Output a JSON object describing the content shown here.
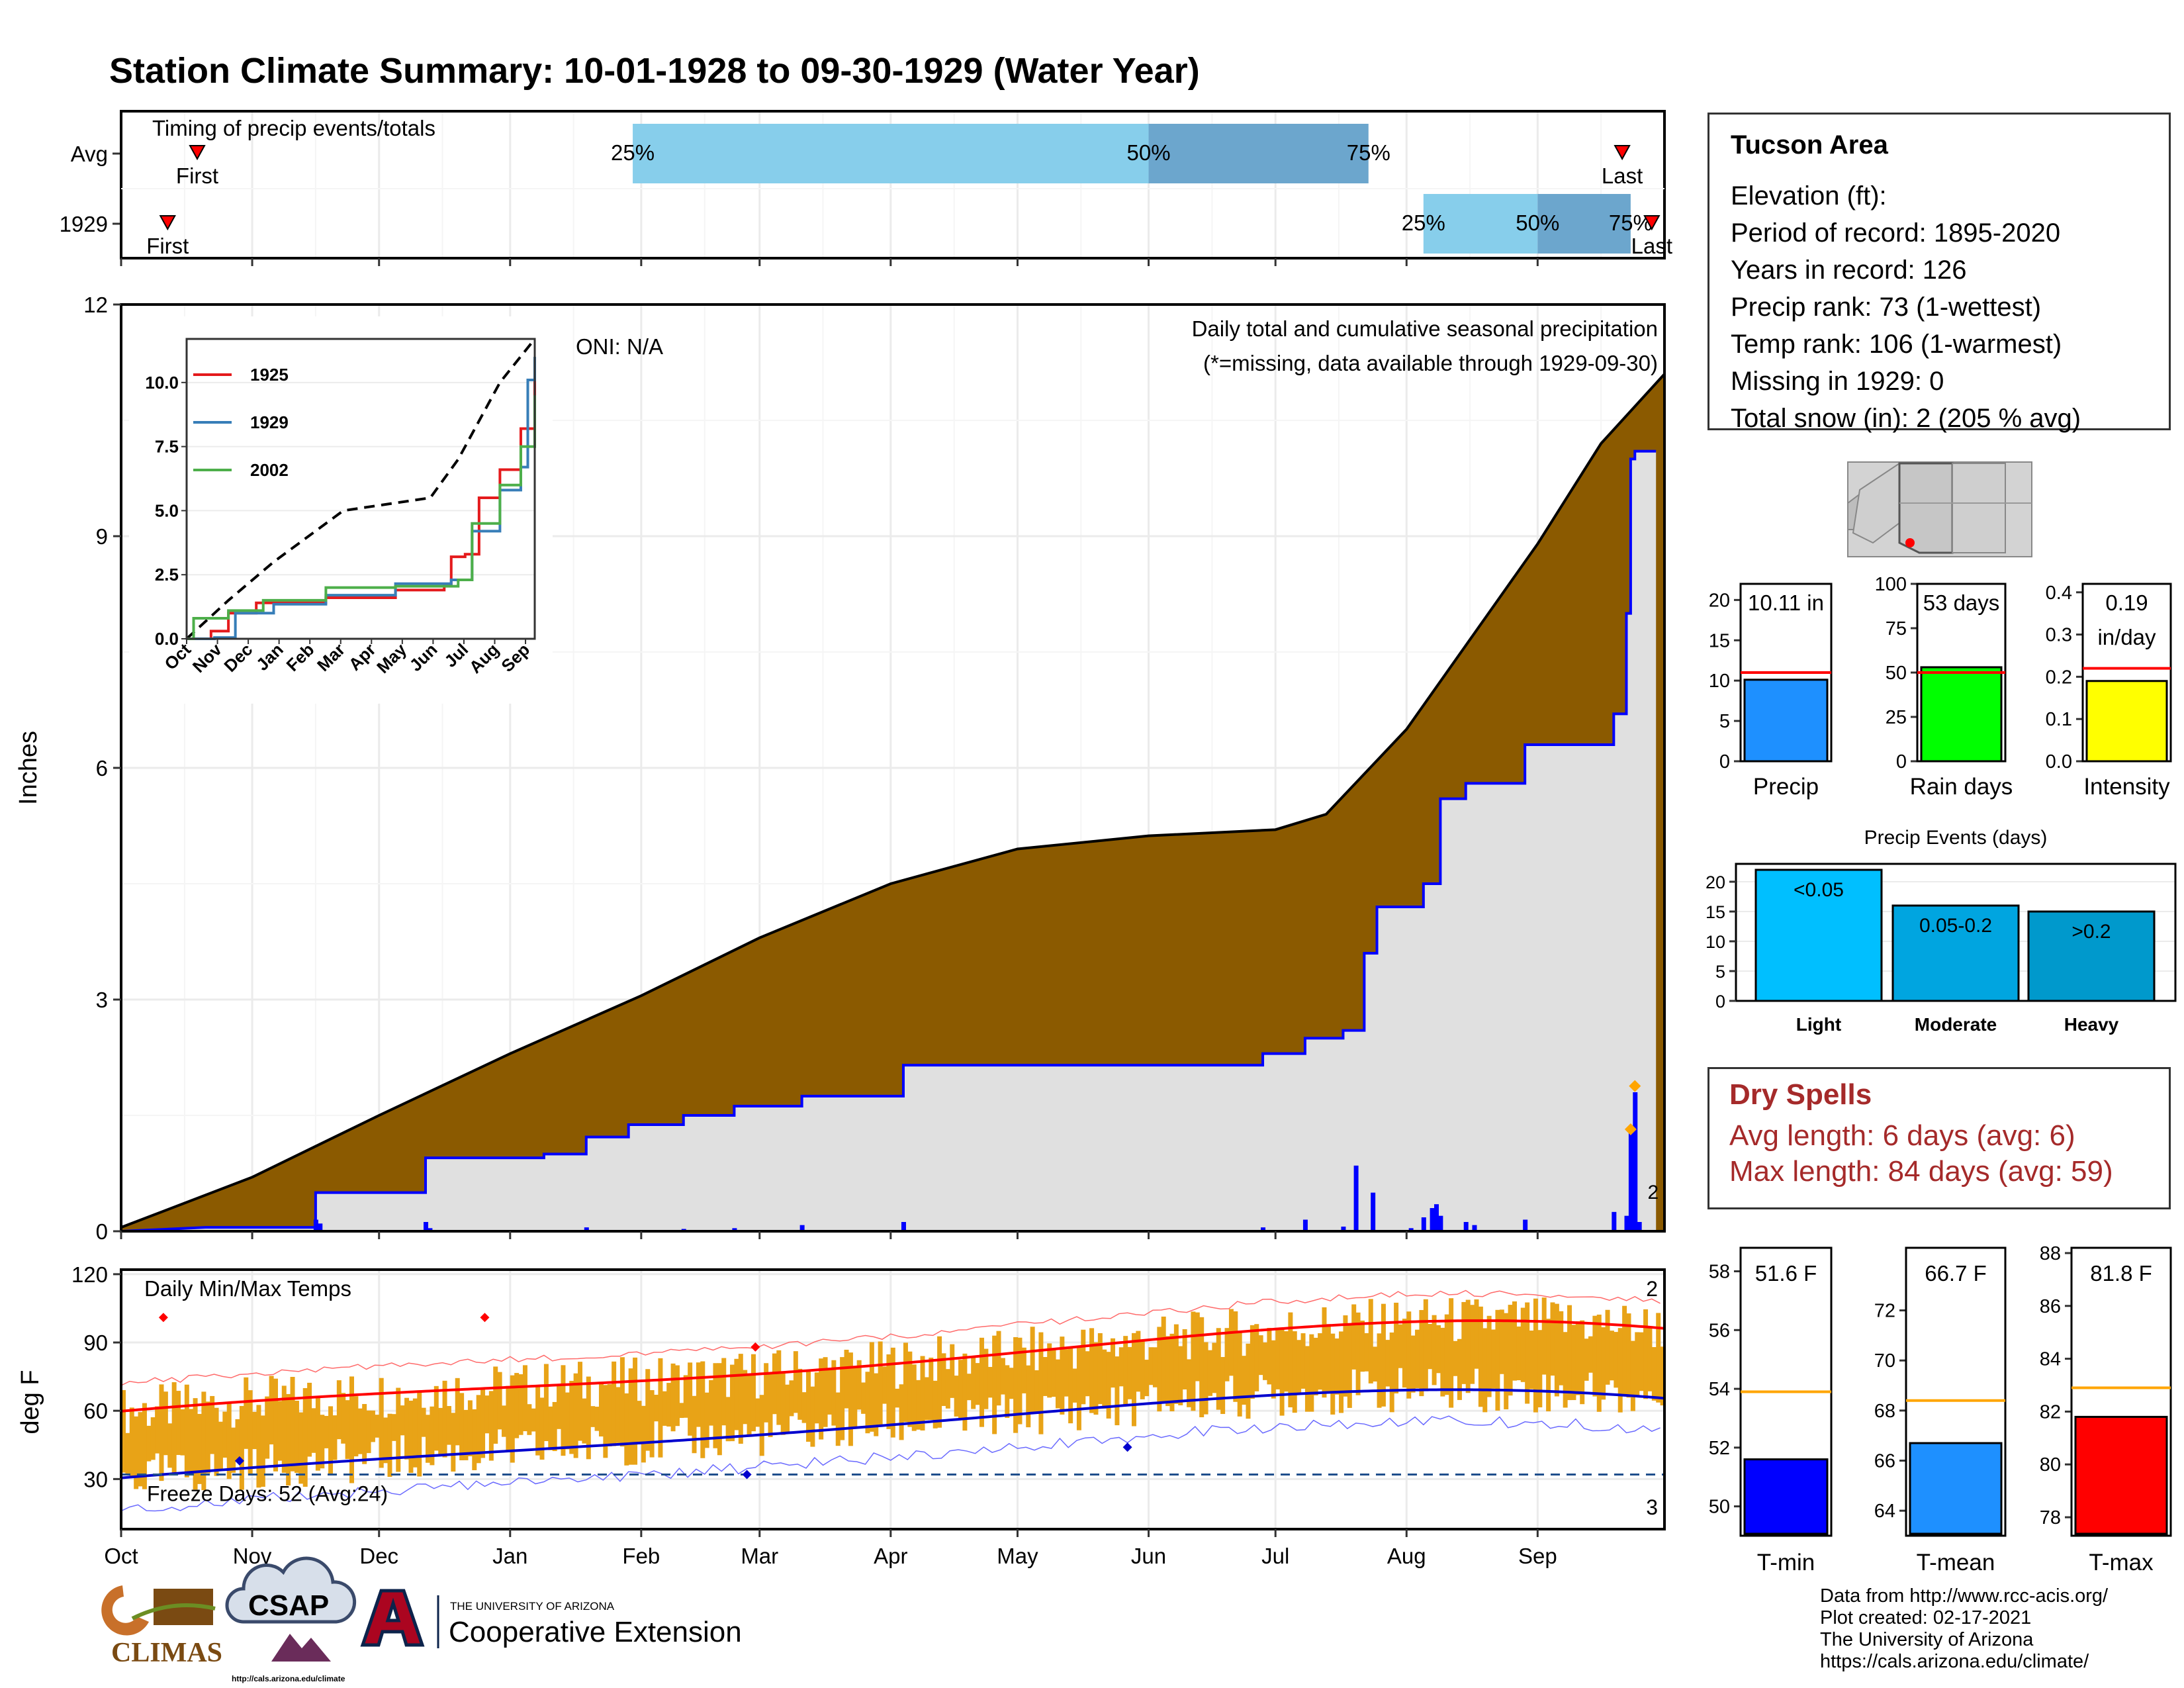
{
  "title": "Station Climate Summary: 10-01-1928 to 09-30-1929 (Water Year)",
  "colors": {
    "title": "#8b2500",
    "cum_avg_fill": "#8b5a00",
    "cum_year_fill": "#e0e0e0",
    "cum_year_line": "#0000ff",
    "daily_bar": "#0000ff",
    "timing_light": "#87ceeb",
    "timing_dark": "#6ca6cd",
    "temp_range": "#e8a317",
    "tmax_avg": "#ff0000",
    "tmin_avg": "#0000cd"
  },
  "timing": {
    "label": "Timing of precip events/totals",
    "rows": [
      {
        "name": "Avg",
        "first": "First",
        "last": "Last",
        "p25": "25%",
        "p50": "50%",
        "p75": "75%",
        "first_day": 18,
        "p25_day": 121,
        "p50_day": 243,
        "p75_day": 295,
        "last_day": 355
      },
      {
        "name": "1929",
        "first": "First",
        "last": "Last",
        "p25": "25%",
        "p50": "50%",
        "p75": "75%",
        "first_day": 11,
        "p25_day": 308,
        "p50_day": 335,
        "p75_day": 357,
        "last_day": 362
      }
    ]
  },
  "precip_chart": {
    "ylabel": "Inches",
    "yticks": [
      0,
      3,
      6,
      9,
      12
    ],
    "ylim": [
      0,
      12
    ],
    "months": [
      "Oct",
      "Nov",
      "Dec",
      "Jan",
      "Feb",
      "Mar",
      "Apr",
      "May",
      "Jun",
      "Jul",
      "Aug",
      "Sep"
    ],
    "oni": "ONI: N/A",
    "caption": "Daily total and cumulative seasonal precipitation",
    "missing_note": "(*=missing, data available through 1929-09-30)",
    "snow_marker": "2",
    "cum_avg_points": [
      [
        0,
        0.05
      ],
      [
        31,
        0.7
      ],
      [
        61,
        1.5
      ],
      [
        92,
        2.3
      ],
      [
        123,
        3.05
      ],
      [
        151,
        3.8
      ],
      [
        182,
        4.5
      ],
      [
        212,
        4.95
      ],
      [
        243,
        5.12
      ],
      [
        273,
        5.2
      ],
      [
        285,
        5.4
      ],
      [
        304,
        6.5
      ],
      [
        335,
        8.9
      ],
      [
        350,
        10.2
      ],
      [
        365,
        11.1
      ]
    ],
    "cum_year_steps": [
      [
        0,
        0
      ],
      [
        20,
        0.05
      ],
      [
        46,
        0.05
      ],
      [
        46,
        0.5
      ],
      [
        72,
        0.5
      ],
      [
        72,
        0.95
      ],
      [
        100,
        0.95
      ],
      [
        100,
        1.0
      ],
      [
        110,
        1.0
      ],
      [
        110,
        1.22
      ],
      [
        120,
        1.22
      ],
      [
        120,
        1.38
      ],
      [
        133,
        1.38
      ],
      [
        133,
        1.5
      ],
      [
        145,
        1.5
      ],
      [
        145,
        1.62
      ],
      [
        161,
        1.62
      ],
      [
        161,
        1.75
      ],
      [
        185,
        1.75
      ],
      [
        185,
        2.15
      ],
      [
        270,
        2.15
      ],
      [
        270,
        2.3
      ],
      [
        280,
        2.3
      ],
      [
        280,
        2.5
      ],
      [
        289,
        2.5
      ],
      [
        289,
        2.6
      ],
      [
        294,
        2.6
      ],
      [
        294,
        3.6
      ],
      [
        297,
        3.6
      ],
      [
        297,
        4.2
      ],
      [
        308,
        4.2
      ],
      [
        308,
        4.5
      ],
      [
        312,
        4.5
      ],
      [
        312,
        5.6
      ],
      [
        318,
        5.6
      ],
      [
        318,
        5.8
      ],
      [
        332,
        5.8
      ],
      [
        332,
        6.3
      ],
      [
        353,
        6.3
      ],
      [
        353,
        6.7
      ],
      [
        356,
        6.7
      ],
      [
        356,
        8.0
      ],
      [
        357,
        8.0
      ],
      [
        357,
        10.0
      ],
      [
        358,
        10.0
      ],
      [
        358,
        10.1
      ],
      [
        363,
        10.1
      ]
    ],
    "daily_bars": [
      [
        46,
        0.15
      ],
      [
        47,
        0.1
      ],
      [
        72,
        0.12
      ],
      [
        73,
        0.04
      ],
      [
        110,
        0.05
      ],
      [
        133,
        0.03
      ],
      [
        145,
        0.04
      ],
      [
        161,
        0.08
      ],
      [
        185,
        0.12
      ],
      [
        270,
        0.05
      ],
      [
        280,
        0.15
      ],
      [
        289,
        0.06
      ],
      [
        292,
        0.85
      ],
      [
        296,
        0.5
      ],
      [
        305,
        0.04
      ],
      [
        308,
        0.18
      ],
      [
        310,
        0.3
      ],
      [
        311,
        0.35
      ],
      [
        312,
        0.2
      ],
      [
        318,
        0.12
      ],
      [
        320,
        0.08
      ],
      [
        332,
        0.15
      ],
      [
        353,
        0.25
      ],
      [
        356,
        0.2
      ],
      [
        357,
        1.3
      ],
      [
        358,
        1.8
      ],
      [
        359,
        0.12
      ]
    ]
  },
  "inset": {
    "legend": [
      "1925",
      "1929",
      "2002"
    ],
    "colors": [
      "#e41a1c",
      "#377eb8",
      "#4daf4a"
    ],
    "yticks": [
      "0.0",
      "2.5",
      "5.0",
      "7.5",
      "10.0"
    ],
    "months": [
      "Oct",
      "Nov",
      "Dec",
      "Jan",
      "Feb",
      "Mar",
      "Apr",
      "May",
      "Jun",
      "Jul",
      "Aug",
      "Sep"
    ]
  },
  "temp_chart": {
    "ylabel": "deg F",
    "label": "Daily Min/Max Temps",
    "yticks": [
      30,
      60,
      90,
      120
    ],
    "ylim": [
      8,
      122
    ],
    "freeze_text": "Freeze Days: 52 (Avg:24)",
    "freeze_line": 32,
    "max_record_count": "2",
    "min_record_count": "3"
  },
  "station": {
    "name": "Tucson Area",
    "lines": [
      "Elevation (ft):",
      "Period of record: 1895-2020",
      "Years in record: 126",
      "Precip rank: 73 (1-wettest)",
      "Temp rank: 106 (1-warmest)",
      "Missing in 1929: 0",
      "Total snow (in): 2 (205 % avg)"
    ]
  },
  "mini_bars": [
    {
      "label": "Precip",
      "value_label": "10.11 in",
      "value": 10.11,
      "avg": 11,
      "ymax": 22,
      "ticks": [
        "0",
        "5",
        "10",
        "15",
        "20"
      ],
      "tickvals": [
        0,
        5,
        10,
        15,
        20
      ],
      "color": "#1e90ff"
    },
    {
      "label": "Rain days",
      "value_label": "53 days",
      "value": 53,
      "avg": 50,
      "ymax": 100,
      "ticks": [
        "0",
        "25",
        "50",
        "75",
        "100"
      ],
      "tickvals": [
        0,
        25,
        50,
        75,
        100
      ],
      "color": "#00ff00"
    },
    {
      "label": "Intensity",
      "value_label": "0.19",
      "value_label2": "in/day",
      "value": 0.19,
      "avg": 0.22,
      "ymax": 0.42,
      "ticks": [
        "0.0",
        "0.1",
        "0.2",
        "0.3",
        "0.4"
      ],
      "tickvals": [
        0,
        0.1,
        0.2,
        0.3,
        0.4
      ],
      "color": "#ffff00"
    }
  ],
  "events": {
    "title": "Precip Events (days)",
    "ticks": [
      "0",
      "5",
      "10",
      "15",
      "20"
    ],
    "tickvals": [
      0,
      5,
      10,
      15,
      20
    ],
    "ymax": 23,
    "bars": [
      {
        "cat": "Light",
        "label": "<0.05",
        "value": 22,
        "color": "#00bfff"
      },
      {
        "cat": "Moderate",
        "label": "0.05-0.2",
        "value": 16,
        "color": "#00a5e0"
      },
      {
        "cat": "Heavy",
        "label": ">0.2",
        "value": 15,
        "color": "#0099cc"
      }
    ]
  },
  "dry_spells": {
    "title": "Dry Spells",
    "avg_length": "Avg length: 6 days (avg: 6)",
    "max_length": "Max length: 84 days (avg: 59)"
  },
  "temp_bars": [
    {
      "label": "T-min",
      "value_label": "51.6 F",
      "value": 51.6,
      "avg": 53.9,
      "ymin": 49,
      "ymax": 58.8,
      "ticks": [
        "50",
        "52",
        "54",
        "56",
        "58"
      ],
      "tickvals": [
        50,
        52,
        54,
        56,
        58
      ],
      "color": "#0000ff"
    },
    {
      "label": "T-mean",
      "value_label": "66.7 F",
      "value": 66.7,
      "avg": 68.4,
      "ymin": 63,
      "ymax": 74.5,
      "ticks": [
        "64",
        "66",
        "68",
        "70",
        "72"
      ],
      "tickvals": [
        64,
        66,
        68,
        70,
        72
      ],
      "color": "#1e90ff"
    },
    {
      "label": "T-max",
      "value_label": "81.8 F",
      "value": 81.8,
      "avg": 82.9,
      "ymin": 77.3,
      "ymax": 88.2,
      "ticks": [
        "78",
        "80",
        "82",
        "84",
        "86",
        "88"
      ],
      "tickvals": [
        78,
        80,
        82,
        84,
        86,
        88
      ],
      "color": "#ff0000"
    }
  ],
  "footer": {
    "credits": [
      "Data from http://www.rcc-acis.org/",
      "Plot created: 02-17-2021",
      "The University of Arizona",
      "https://cals.arizona.edu/climate/"
    ],
    "climas": "CLIMAS",
    "csap": "CSAP",
    "csap_url": "http://cals.arizona.edu/climate",
    "ua_small": "THE UNIVERSITY OF ARIZONA",
    "ua_big": "Cooperative Extension"
  }
}
